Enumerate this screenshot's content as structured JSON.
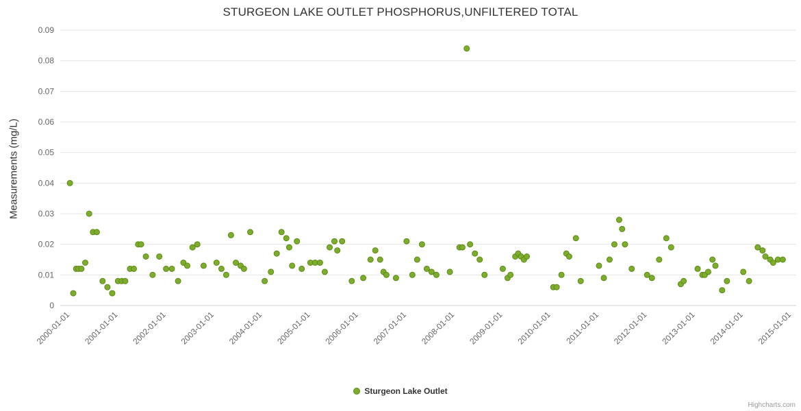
{
  "chart": {
    "credits": "Highcharts.com"
  },
  "colors": {
    "point_fill": "#7cad2c",
    "point_stroke": "#5c8a16",
    "grid": "#e6e6e6",
    "axis_line": "#ccd1da",
    "tick_label": "#666666",
    "title_text": "#333333"
  },
  "chart_data": {
    "type": "scatter",
    "title": "STURGEON LAKE OUTLET PHOSPHORUS,UNFILTERED TOTAL",
    "xlabel": "",
    "ylabel": "Measurements (mg/L)",
    "ylim": [
      0,
      0.09
    ],
    "xlim": [
      1999.8,
      2015.1
    ],
    "grid": "horizontal-only",
    "legend": {
      "position": "bottom-center"
    },
    "yticks": {
      "values": [
        0,
        0.01,
        0.02,
        0.03,
        0.04,
        0.05,
        0.06,
        0.07,
        0.08,
        0.09
      ],
      "labels": [
        "0",
        "0.01",
        "0.02",
        "0.03",
        "0.04",
        "0.05",
        "0.06",
        "0.07",
        "0.08",
        "0.09"
      ]
    },
    "xticks": {
      "values": [
        2000,
        2001,
        2002,
        2003,
        2004,
        2005,
        2006,
        2007,
        2008,
        2009,
        2010,
        2011,
        2012,
        2013,
        2014,
        2015
      ],
      "labels": [
        "2000-01-01",
        "2001-01-01",
        "2002-01-01",
        "2003-01-01",
        "2004-01-01",
        "2005-01-01",
        "2006-01-01",
        "2007-01-01",
        "2008-01-01",
        "2009-01-01",
        "2010-01-01",
        "2011-01-01",
        "2012-01-01",
        "2013-01-01",
        "2014-01-01",
        "2015-01-01"
      ]
    },
    "series": [
      {
        "name": "Sturgeon Lake Outlet",
        "points": [
          [
            2000.0,
            0.04
          ],
          [
            2000.07,
            0.004
          ],
          [
            2000.13,
            0.012
          ],
          [
            2000.18,
            0.012
          ],
          [
            2000.24,
            0.012
          ],
          [
            2000.32,
            0.014
          ],
          [
            2000.4,
            0.03
          ],
          [
            2000.48,
            0.024
          ],
          [
            2000.56,
            0.024
          ],
          [
            2000.68,
            0.008
          ],
          [
            2000.78,
            0.006
          ],
          [
            2000.88,
            0.004
          ],
          [
            2001.0,
            0.008
          ],
          [
            2001.08,
            0.008
          ],
          [
            2001.15,
            0.008
          ],
          [
            2001.25,
            0.012
          ],
          [
            2001.33,
            0.012
          ],
          [
            2001.42,
            0.02
          ],
          [
            2001.48,
            0.02
          ],
          [
            2001.58,
            0.016
          ],
          [
            2001.72,
            0.01
          ],
          [
            2001.86,
            0.016
          ],
          [
            2002.0,
            0.012
          ],
          [
            2002.12,
            0.012
          ],
          [
            2002.25,
            0.008
          ],
          [
            2002.36,
            0.014
          ],
          [
            2002.44,
            0.013
          ],
          [
            2002.55,
            0.019
          ],
          [
            2002.65,
            0.02
          ],
          [
            2002.78,
            0.013
          ],
          [
            2003.05,
            0.014
          ],
          [
            2003.15,
            0.012
          ],
          [
            2003.25,
            0.01
          ],
          [
            2003.35,
            0.023
          ],
          [
            2003.45,
            0.014
          ],
          [
            2003.55,
            0.013
          ],
          [
            2003.62,
            0.012
          ],
          [
            2003.75,
            0.024
          ],
          [
            2004.05,
            0.008
          ],
          [
            2004.18,
            0.011
          ],
          [
            2004.3,
            0.017
          ],
          [
            2004.4,
            0.024
          ],
          [
            2004.5,
            0.022
          ],
          [
            2004.56,
            0.019
          ],
          [
            2004.62,
            0.013
          ],
          [
            2004.72,
            0.021
          ],
          [
            2004.82,
            0.012
          ],
          [
            2005.0,
            0.014
          ],
          [
            2005.1,
            0.014
          ],
          [
            2005.2,
            0.014
          ],
          [
            2005.3,
            0.011
          ],
          [
            2005.4,
            0.019
          ],
          [
            2005.5,
            0.021
          ],
          [
            2005.56,
            0.018
          ],
          [
            2005.66,
            0.021
          ],
          [
            2005.86,
            0.008
          ],
          [
            2006.1,
            0.009
          ],
          [
            2006.25,
            0.015
          ],
          [
            2006.35,
            0.018
          ],
          [
            2006.45,
            0.015
          ],
          [
            2006.52,
            0.011
          ],
          [
            2006.58,
            0.01
          ],
          [
            2006.78,
            0.009
          ],
          [
            2007.0,
            0.021
          ],
          [
            2007.12,
            0.01
          ],
          [
            2007.22,
            0.015
          ],
          [
            2007.32,
            0.02
          ],
          [
            2007.42,
            0.012
          ],
          [
            2007.52,
            0.011
          ],
          [
            2007.62,
            0.01
          ],
          [
            2007.9,
            0.011
          ],
          [
            2008.1,
            0.019
          ],
          [
            2008.16,
            0.019
          ],
          [
            2008.25,
            0.084
          ],
          [
            2008.32,
            0.02
          ],
          [
            2008.42,
            0.017
          ],
          [
            2008.52,
            0.015
          ],
          [
            2008.62,
            0.01
          ],
          [
            2009.0,
            0.012
          ],
          [
            2009.1,
            0.009
          ],
          [
            2009.16,
            0.01
          ],
          [
            2009.26,
            0.016
          ],
          [
            2009.32,
            0.017
          ],
          [
            2009.38,
            0.016
          ],
          [
            2009.44,
            0.015
          ],
          [
            2009.5,
            0.016
          ],
          [
            2010.05,
            0.006
          ],
          [
            2010.12,
            0.006
          ],
          [
            2010.22,
            0.01
          ],
          [
            2010.32,
            0.017
          ],
          [
            2010.38,
            0.016
          ],
          [
            2010.52,
            0.022
          ],
          [
            2010.62,
            0.008
          ],
          [
            2011.0,
            0.013
          ],
          [
            2011.1,
            0.009
          ],
          [
            2011.22,
            0.015
          ],
          [
            2011.32,
            0.02
          ],
          [
            2011.42,
            0.028
          ],
          [
            2011.48,
            0.025
          ],
          [
            2011.54,
            0.02
          ],
          [
            2011.68,
            0.012
          ],
          [
            2012.0,
            0.01
          ],
          [
            2012.1,
            0.009
          ],
          [
            2012.25,
            0.015
          ],
          [
            2012.4,
            0.022
          ],
          [
            2012.5,
            0.019
          ],
          [
            2012.7,
            0.007
          ],
          [
            2012.76,
            0.008
          ],
          [
            2013.05,
            0.012
          ],
          [
            2013.15,
            0.01
          ],
          [
            2013.2,
            0.01
          ],
          [
            2013.27,
            0.011
          ],
          [
            2013.36,
            0.015
          ],
          [
            2013.42,
            0.013
          ],
          [
            2013.56,
            0.005
          ],
          [
            2013.66,
            0.008
          ],
          [
            2014.0,
            0.011
          ],
          [
            2014.12,
            0.008
          ],
          [
            2014.3,
            0.019
          ],
          [
            2014.4,
            0.018
          ],
          [
            2014.46,
            0.016
          ],
          [
            2014.56,
            0.015
          ],
          [
            2014.62,
            0.014
          ],
          [
            2014.72,
            0.015
          ],
          [
            2014.82,
            0.015
          ]
        ]
      }
    ]
  }
}
